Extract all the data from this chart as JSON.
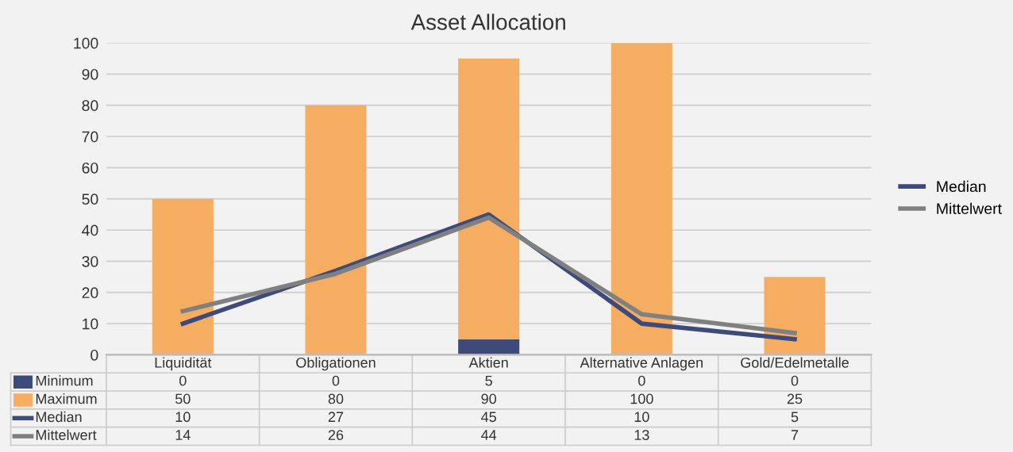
{
  "chart_data": {
    "type": "bar",
    "title": "Asset Allocation",
    "stacked": true,
    "data_labels": true,
    "categories": [
      "Liquidität",
      "Obligationen",
      "Aktien",
      "Alternative Anlagen",
      "Gold/Edelmetalle"
    ],
    "series": [
      {
        "name": "Minimum",
        "color": "#3d4a7a",
        "values": [
          0,
          0,
          5,
          0,
          0
        ]
      },
      {
        "name": "Maximum",
        "color": "#f5ad62",
        "values": [
          50,
          80,
          90,
          100,
          25
        ]
      },
      {
        "name": "Median",
        "type": "line",
        "color": "#3d4a7a",
        "values": [
          10,
          27,
          45,
          10,
          5
        ]
      },
      {
        "name": "Mittelwert",
        "type": "line",
        "color": "#808080",
        "values": [
          14,
          26,
          44,
          13,
          7
        ]
      }
    ],
    "ylim": [
      0,
      100
    ],
    "yticks": [
      0,
      10,
      20,
      30,
      40,
      50,
      60,
      70,
      80,
      90,
      100
    ],
    "grid": "y",
    "legend": "bottom left",
    "marker": "none",
    "line_style": "solid"
  }
}
